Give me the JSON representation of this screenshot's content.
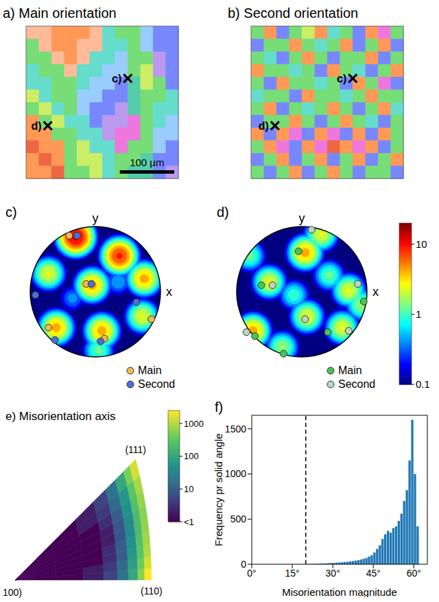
{
  "chart_data": [
    {
      "type": "map",
      "title": "a) Main orientation",
      "extent": [
        280,
        280
      ],
      "cells": [
        [
          "#fb9",
          "#fb9",
          "#f95",
          "#f95",
          "#f95",
          "#fb9",
          "#6dc",
          "#7d7",
          "#7d7",
          "#9cf",
          "#78f",
          "#78f"
        ],
        [
          "#7d7",
          "#fb9",
          "#f95",
          "#f95",
          "#fb9",
          "#fb9",
          "#6dc",
          "#6dc",
          "#7d7",
          "#9cf",
          "#78f",
          "#78f"
        ],
        [
          "#7d7",
          "#7d7",
          "#fb9",
          "#f95",
          "#fb9",
          "#6dc",
          "#6dc",
          "#9cf",
          "#7d7",
          "#7d7",
          "#b9e",
          "#78f"
        ],
        [
          "#6dc",
          "#7d7",
          "#7d7",
          "#fb9",
          "#6dc",
          "#6dc",
          "#9cf",
          "#9cf",
          "#7d7",
          "#ce6",
          "#b9e",
          "#78f"
        ],
        [
          "#6dc",
          "#6dc",
          "#7d7",
          "#7d7",
          "#6dc",
          "#9cf",
          "#9cf",
          "#78f",
          "#5ca",
          "#ce6",
          "#7d7",
          "#78f"
        ],
        [
          "#ce6",
          "#6dc",
          "#7d7",
          "#7d7",
          "#9cf",
          "#9cf",
          "#78f",
          "#78f",
          "#5ca",
          "#7d7",
          "#7d7",
          "#6dc"
        ],
        [
          "#7d7",
          "#ce6",
          "#6dc",
          "#7d7",
          "#9cf",
          "#78f",
          "#78f",
          "#b9e",
          "#5ca",
          "#7d7",
          "#6dc",
          "#6dc"
        ],
        [
          "#f95",
          "#7d7",
          "#ce6",
          "#6dc",
          "#6dc",
          "#78f",
          "#b9e",
          "#b9e",
          "#e7d",
          "#7d7",
          "#6dc",
          "#9cf"
        ],
        [
          "#f95",
          "#f95",
          "#7d7",
          "#7d7",
          "#6dc",
          "#6dc",
          "#b9e",
          "#e7d",
          "#e7d",
          "#7d7",
          "#9cf",
          "#9cf"
        ],
        [
          "#e64",
          "#f95",
          "#f95",
          "#7d7",
          "#ce6",
          "#6dc",
          "#6dc",
          "#e7d",
          "#7d7",
          "#7d7",
          "#9cf",
          "#78f"
        ],
        [
          "#f95",
          "#e64",
          "#f95",
          "#7d7",
          "#ce6",
          "#ce6",
          "#6dc",
          "#7d7",
          "#7d7",
          "#5ca",
          "#78f",
          "#78f"
        ],
        [
          "#f95",
          "#f95",
          "#e64",
          "#7d7",
          "#7d7",
          "#ce6",
          "#6dc",
          "#7d7",
          "#5ca",
          "#5ca",
          "#78f",
          "#b9e"
        ]
      ],
      "markers": [
        {
          "label": "c)",
          "x": 187,
          "y": 96
        },
        {
          "label": "d)",
          "x": 40,
          "y": 183
        }
      ],
      "scale_bar": {
        "length": 100,
        "label": "100 µm"
      }
    },
    {
      "type": "map",
      "title": "b) Second orientation",
      "extent": [
        280,
        280
      ],
      "cells": [
        [
          "#7d7",
          "#f95",
          "#78f",
          "#7d7",
          "#ce6",
          "#f95",
          "#6dc",
          "#7d7",
          "#78f",
          "#f95",
          "#e7d",
          "#7d7"
        ],
        [
          "#78f",
          "#7d7",
          "#7d7",
          "#f95",
          "#7d7",
          "#6dc",
          "#7d7",
          "#f95",
          "#78f",
          "#7d7",
          "#f95",
          "#78f"
        ],
        [
          "#7d7",
          "#6dc",
          "#78f",
          "#7d7",
          "#f95",
          "#7d7",
          "#78f",
          "#7d7",
          "#7d7",
          "#f95",
          "#78f",
          "#7d7"
        ],
        [
          "#f95",
          "#7d7",
          "#7d7",
          "#6dc",
          "#7d7",
          "#78f",
          "#f95",
          "#7d7",
          "#6dc",
          "#78f",
          "#7d7",
          "#f95"
        ],
        [
          "#7d7",
          "#78f",
          "#f95",
          "#7d7",
          "#7d7",
          "#6dc",
          "#7d7",
          "#78f",
          "#f95",
          "#7d7",
          "#e7d",
          "#78f"
        ],
        [
          "#6dc",
          "#7d7",
          "#7d7",
          "#78f",
          "#f95",
          "#7d7",
          "#7d7",
          "#6dc",
          "#7d7",
          "#f95",
          "#7d7",
          "#7d7"
        ],
        [
          "#7d7",
          "#f95",
          "#78f",
          "#7d7",
          "#6dc",
          "#7d7",
          "#f95",
          "#7d7",
          "#78f",
          "#7d7",
          "#f95",
          "#6dc"
        ],
        [
          "#78f",
          "#7d7",
          "#7d7",
          "#f95",
          "#7d7",
          "#78f",
          "#7d7",
          "#f95",
          "#7d7",
          "#6dc",
          "#78f",
          "#7d7"
        ],
        [
          "#f95",
          "#78f",
          "#f95",
          "#e7d",
          "#78f",
          "#f95",
          "#e7d",
          "#78f",
          "#f95",
          "#78f",
          "#f95",
          "#7d7"
        ],
        [
          "#7d7",
          "#f95",
          "#e7d",
          "#78f",
          "#f95",
          "#e7d",
          "#e64",
          "#f95",
          "#e7d",
          "#f95",
          "#78f",
          "#7d7"
        ],
        [
          "#78f",
          "#7d7",
          "#f95",
          "#78f",
          "#7d7",
          "#f95",
          "#78f",
          "#7d7",
          "#f95",
          "#78f",
          "#7d7",
          "#f95"
        ],
        [
          "#7d7",
          "#78f",
          "#7d7",
          "#f95",
          "#78f",
          "#7d7",
          "#f95",
          "#7d7",
          "#78f",
          "#7d7",
          "#7d7",
          "#78f"
        ]
      ],
      "markers": [
        {
          "label": "c)",
          "x": 187,
          "y": 96
        },
        {
          "label": "d)",
          "x": 44,
          "y": 183
        }
      ]
    },
    {
      "type": "pole_figure",
      "title": "c)",
      "xlabel": "x",
      "ylabel": "y",
      "density": [
        [
          -0.3,
          0.84,
          15
        ],
        [
          0.37,
          0.55,
          10
        ],
        [
          -0.72,
          0.28,
          3
        ],
        [
          -0.05,
          0.1,
          5
        ],
        [
          0.75,
          0.2,
          5
        ],
        [
          -0.6,
          -0.55,
          5
        ],
        [
          0.1,
          -0.6,
          5
        ],
        [
          0.72,
          -0.38,
          3
        ],
        [
          0.05,
          -0.9,
          1.5
        ],
        [
          0.35,
          0.15,
          0.6
        ],
        [
          -0.35,
          -0.1,
          0.5
        ]
      ],
      "series": [
        {
          "name": "Main",
          "color": "#f2b84b",
          "marker": "circle",
          "values": [
            [
              -0.4,
              0.86
            ],
            [
              -0.14,
              0.12
            ],
            [
              -0.72,
              -0.55
            ],
            [
              0.14,
              -0.72
            ],
            [
              0.86,
              -0.42
            ]
          ]
        },
        {
          "name": "Second",
          "color": "#4a6fd6",
          "marker": "circle",
          "values": [
            [
              -0.28,
              0.86
            ],
            [
              -0.06,
              0.12
            ],
            [
              -0.92,
              -0.05
            ],
            [
              0.63,
              -0.16
            ],
            [
              0.08,
              -0.76
            ],
            [
              -0.62,
              -0.74
            ]
          ]
        }
      ]
    },
    {
      "type": "pole_figure",
      "title": "d)",
      "xlabel": "x",
      "ylabel": "y",
      "density": [
        [
          -0.5,
          0.15,
          3
        ],
        [
          0.05,
          0.6,
          5
        ],
        [
          0.3,
          0.88,
          3
        ],
        [
          0.72,
          0.02,
          3
        ],
        [
          -0.75,
          -0.6,
          5
        ],
        [
          0.08,
          -0.38,
          3
        ],
        [
          0.62,
          -0.55,
          3
        ],
        [
          -0.3,
          -0.85,
          2
        ],
        [
          -0.8,
          0.55,
          1.5
        ],
        [
          0.42,
          0.25,
          1.5
        ],
        [
          -0.12,
          -0.05,
          1.2
        ],
        [
          0.92,
          -0.2,
          2
        ]
      ],
      "series": [
        {
          "name": "Main",
          "color": "#45c45a",
          "marker": "circle",
          "values": [
            [
              -0.62,
              0.1
            ],
            [
              -0.05,
              0.62
            ],
            [
              0.95,
              -0.15
            ],
            [
              -0.72,
              -0.68
            ],
            [
              -0.28,
              -0.95
            ],
            [
              0.4,
              -0.62
            ]
          ]
        },
        {
          "name": "Second",
          "color": "#b9d6c0",
          "marker": "circle",
          "values": [
            [
              -0.45,
              0.1
            ],
            [
              0.15,
              0.95
            ],
            [
              0.86,
              0.12
            ],
            [
              -0.85,
              -0.62
            ],
            [
              0.05,
              -0.42
            ],
            [
              0.72,
              -0.6
            ]
          ]
        }
      ],
      "log": true,
      "colorbar": {
        "range": [
          0.1,
          20
        ],
        "ticks": [
          10,
          1,
          0.1
        ]
      }
    },
    {
      "type": "heatmap",
      "title": "e) Misorientation axis",
      "corner_labels": [
        "100)",
        "(110)",
        "(111)"
      ],
      "theta_edges": [
        0,
        5,
        10,
        15,
        20,
        25,
        30,
        35,
        40,
        45
      ],
      "radius_edges": [
        0,
        0.3,
        0.5,
        0.65,
        0.75,
        0.83,
        0.9,
        0.95,
        1
      ],
      "cells": [
        [
          0.5,
          1,
          2,
          5,
          20,
          100,
          600,
          2500
        ],
        [
          0.5,
          1,
          2,
          4,
          15,
          80,
          400,
          1500
        ],
        [
          0.5,
          1,
          1,
          3,
          10,
          60,
          300,
          1000
        ],
        [
          0.5,
          0.5,
          1,
          3,
          10,
          50,
          250,
          800
        ],
        [
          0.5,
          0.5,
          1,
          2,
          8,
          40,
          200,
          700
        ],
        [
          0.5,
          0.5,
          1,
          2,
          8,
          40,
          200,
          600
        ],
        [
          0.5,
          0.5,
          1,
          3,
          10,
          50,
          250,
          700
        ],
        [
          0.5,
          1,
          2,
          4,
          15,
          60,
          300,
          900
        ],
        [
          0.5,
          1,
          2,
          5,
          20,
          100,
          500,
          1500
        ]
      ],
      "log": true,
      "colorbar": {
        "range": [
          1,
          2500
        ],
        "ticks": [
          {
            "value": 1,
            "label": "<1"
          },
          10,
          100,
          1000
        ]
      }
    },
    {
      "type": "histogram",
      "title": "f)",
      "xlabel": "Misorientation magnitude",
      "ylabel": "Frequency pr solid angle",
      "bins": [
        20,
        21,
        22,
        23,
        24,
        25,
        26,
        27,
        28,
        29,
        30,
        31,
        32,
        33,
        34,
        35,
        36,
        37,
        38,
        39,
        40,
        41,
        42,
        43,
        44,
        45,
        46,
        47,
        48,
        49,
        50,
        51,
        52,
        53,
        54,
        55,
        56,
        57,
        58,
        59,
        60,
        61,
        62
      ],
      "counts": [
        0,
        3,
        4,
        5,
        6,
        8,
        8,
        10,
        12,
        14,
        15,
        18,
        20,
        22,
        25,
        28,
        32,
        36,
        40,
        45,
        52,
        60,
        70,
        85,
        100,
        130,
        170,
        210,
        280,
        330,
        370,
        350,
        400,
        420,
        480,
        560,
        700,
        820,
        1150,
        1600,
        1000,
        420
      ],
      "color": "#1f77b4",
      "threshold": 20,
      "xlim": [
        0,
        65
      ],
      "ylim": [
        0,
        1650
      ],
      "xticks": [
        {
          "value": 0,
          "label": "0°"
        },
        {
          "value": 15,
          "label": "15°"
        },
        {
          "value": 30,
          "label": "30°"
        },
        {
          "value": 45,
          "label": "45°"
        },
        {
          "value": 60,
          "label": "60°"
        }
      ],
      "yticks": [
        0,
        500,
        1000,
        1500
      ],
      "grid": false
    }
  ]
}
